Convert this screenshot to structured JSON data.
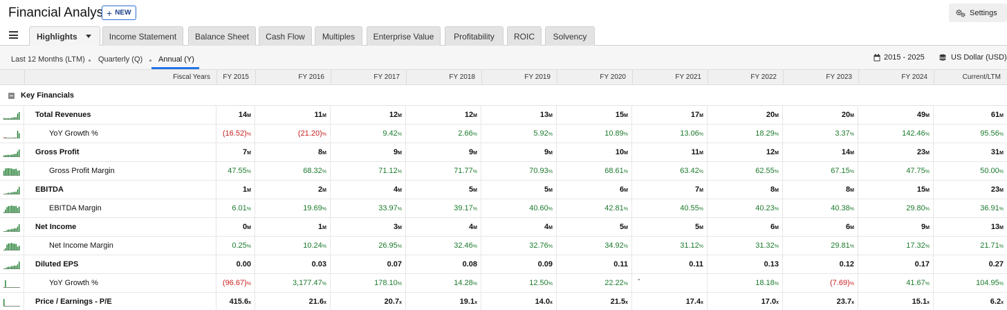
{
  "app": {
    "title": "Financial Analysis",
    "new_label": "NEW",
    "settings_label": "Settings"
  },
  "tabs": [
    {
      "label": "Highlights",
      "active": true
    },
    {
      "label": "Income Statement"
    },
    {
      "label": "Balance Sheet"
    },
    {
      "label": "Cash Flow"
    },
    {
      "label": "Multiples"
    },
    {
      "label": "Enterprise Value"
    },
    {
      "label": "Profitability"
    },
    {
      "label": "ROIC"
    },
    {
      "label": "Solvency"
    }
  ],
  "periods": [
    {
      "label": "Last 12 Months (LTM)"
    },
    {
      "label": "Quarterly (Q)"
    },
    {
      "label": "Annual (Y)",
      "active": true
    }
  ],
  "range_label": "2015 - 2025",
  "currency_label": "US Dollar (USD)",
  "table": {
    "fiscal_years_label": "Fiscal Years",
    "columns": [
      "FY 2015",
      "FY 2016",
      "FY 2017",
      "FY 2018",
      "FY 2019",
      "FY 2020",
      "FY 2021",
      "FY 2022",
      "FY 2023",
      "FY 2024",
      "Current/LTM"
    ],
    "section_label": "Key Financials",
    "rows": [
      {
        "label": "Total Revenues",
        "kind": "bold",
        "unit": "M",
        "values": [
          "14",
          "11",
          "12",
          "12",
          "13",
          "15",
          "17",
          "20",
          "20",
          "49",
          "61"
        ],
        "spark": [
          14,
          11,
          12,
          12,
          13,
          15,
          17,
          20,
          20,
          49,
          61
        ]
      },
      {
        "label": "YoY Growth %",
        "kind": "sub",
        "unit": "%",
        "values": [
          "(16.52)",
          "(21.20)",
          "9.42",
          "2.66",
          "5.92",
          "10.89",
          "13.06",
          "18.29",
          "3.37",
          "142.46",
          "95.56"
        ],
        "spark": [
          -16.52,
          -21.2,
          9.42,
          2.66,
          5.92,
          10.89,
          13.06,
          18.29,
          3.37,
          142.46,
          95.56
        ]
      },
      {
        "label": "Gross Profit",
        "kind": "bold",
        "unit": "M",
        "values": [
          "7",
          "8",
          "9",
          "9",
          "9",
          "10",
          "11",
          "12",
          "14",
          "23",
          "31"
        ],
        "spark": [
          7,
          8,
          9,
          9,
          9,
          10,
          11,
          12,
          14,
          23,
          31
        ]
      },
      {
        "label": "Gross Profit Margin",
        "kind": "sub",
        "unit": "%",
        "values": [
          "47.55",
          "68.32",
          "71.12",
          "71.77",
          "70.93",
          "68.61",
          "63.42",
          "62.55",
          "67.15",
          "47.75",
          "50.00"
        ],
        "spark": [
          47.55,
          68.32,
          71.12,
          71.77,
          70.93,
          68.61,
          63.42,
          62.55,
          67.15,
          47.75,
          50.0
        ]
      },
      {
        "label": "EBITDA",
        "kind": "bold",
        "unit": "M",
        "values": [
          "1",
          "2",
          "4",
          "5",
          "5",
          "6",
          "7",
          "8",
          "8",
          "15",
          "23"
        ],
        "spark": [
          1,
          2,
          4,
          5,
          5,
          6,
          7,
          8,
          8,
          15,
          23
        ]
      },
      {
        "label": "EBITDA Margin",
        "kind": "sub",
        "unit": "%",
        "values": [
          "6.01",
          "19.69",
          "33.97",
          "39.17",
          "40.60",
          "42.81",
          "40.55",
          "40.23",
          "40.38",
          "29.80",
          "36.91"
        ],
        "spark": [
          6.01,
          19.69,
          33.97,
          39.17,
          40.6,
          42.81,
          40.55,
          40.23,
          40.38,
          29.8,
          36.91
        ]
      },
      {
        "label": "Net Income",
        "kind": "bold",
        "unit": "M",
        "values": [
          "0",
          "1",
          "3",
          "4",
          "4",
          "5",
          "5",
          "6",
          "6",
          "9",
          "13"
        ],
        "spark": [
          0.3,
          1,
          3,
          4,
          4,
          5,
          5,
          6,
          6,
          9,
          13
        ]
      },
      {
        "label": "Net Income Margin",
        "kind": "sub",
        "unit": "%",
        "values": [
          "0.25",
          "10.24",
          "26.95",
          "32.46",
          "32.76",
          "34.92",
          "31.12",
          "31.32",
          "29.81",
          "17.32",
          "21.71"
        ],
        "spark": [
          0.25,
          10.24,
          26.95,
          32.46,
          32.76,
          34.92,
          31.12,
          31.32,
          29.81,
          17.32,
          21.71
        ]
      },
      {
        "label": "Diluted EPS",
        "kind": "bold",
        "unit": "",
        "values": [
          "0.00",
          "0.03",
          "0.07",
          "0.08",
          "0.09",
          "0.11",
          "0.11",
          "0.13",
          "0.12",
          "0.17",
          "0.27"
        ],
        "spark": [
          0.0,
          0.03,
          0.07,
          0.08,
          0.09,
          0.11,
          0.11,
          0.13,
          0.12,
          0.17,
          0.27
        ]
      },
      {
        "label": "YoY Growth %",
        "kind": "sub",
        "unit": "%",
        "values": [
          "(96.67)",
          "3,177.47",
          "178.10",
          "14.28",
          "12.50",
          "22.22",
          "-",
          "18.18",
          "(7.69)",
          "41.67",
          "104.95"
        ],
        "spark": [
          -96.67,
          3177.47,
          178.1,
          14.28,
          12.5,
          22.22,
          0,
          18.18,
          -7.69,
          41.67,
          104.95
        ]
      },
      {
        "label": "Price / Earnings - P/E",
        "kind": "bold",
        "unit": "x",
        "values": [
          "415.6",
          "21.6",
          "20.7",
          "19.1",
          "14.0",
          "21.5",
          "17.4",
          "17.0",
          "23.7",
          "15.1",
          "6.2"
        ],
        "spark": [
          415.6,
          21.6,
          20.7,
          19.1,
          14.0,
          21.5,
          17.4,
          17.0,
          23.7,
          15.1,
          6.2
        ]
      }
    ]
  },
  "colors": {
    "positive": "#1b7a2c",
    "negative": "#c81e1e",
    "accent": "#1e73e8"
  },
  "icons": {
    "menu": "hamburger-icon",
    "settings": "gears-icon",
    "calendar": "calendar-icon",
    "currency": "coins-icon",
    "collapse": "minus-square-icon"
  }
}
